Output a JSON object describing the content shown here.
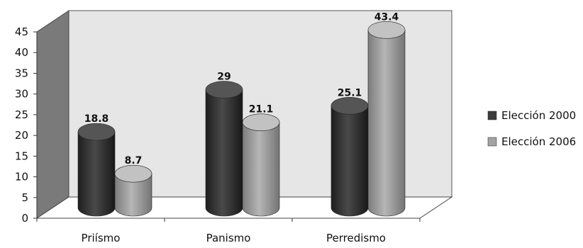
{
  "chart_data": {
    "type": "bar",
    "style": "3d-cylinder",
    "title": "",
    "xlabel": "",
    "ylabel": "",
    "categories": [
      "Priísmo",
      "Panismo",
      "Perredismo"
    ],
    "series": [
      {
        "name": "Elección 2000",
        "values": [
          18.8,
          29,
          25.1
        ],
        "color": "#3c3c3c",
        "value_labels": [
          "18.8",
          "29",
          "25.1"
        ]
      },
      {
        "name": "Elección 2006",
        "values": [
          8.7,
          21.1,
          43.4
        ],
        "color": "#a3a3a3",
        "value_labels": [
          "8.7",
          "21.1",
          "43.4"
        ]
      }
    ],
    "ylim": [
      0,
      45
    ],
    "yticks": [
      "0",
      "5",
      "10",
      "15",
      "20",
      "25",
      "30",
      "35",
      "40",
      "45"
    ],
    "grid": false,
    "legend": "right",
    "wall_color": "#e6e6e6",
    "side_wall_color": "#7a7a7a"
  }
}
